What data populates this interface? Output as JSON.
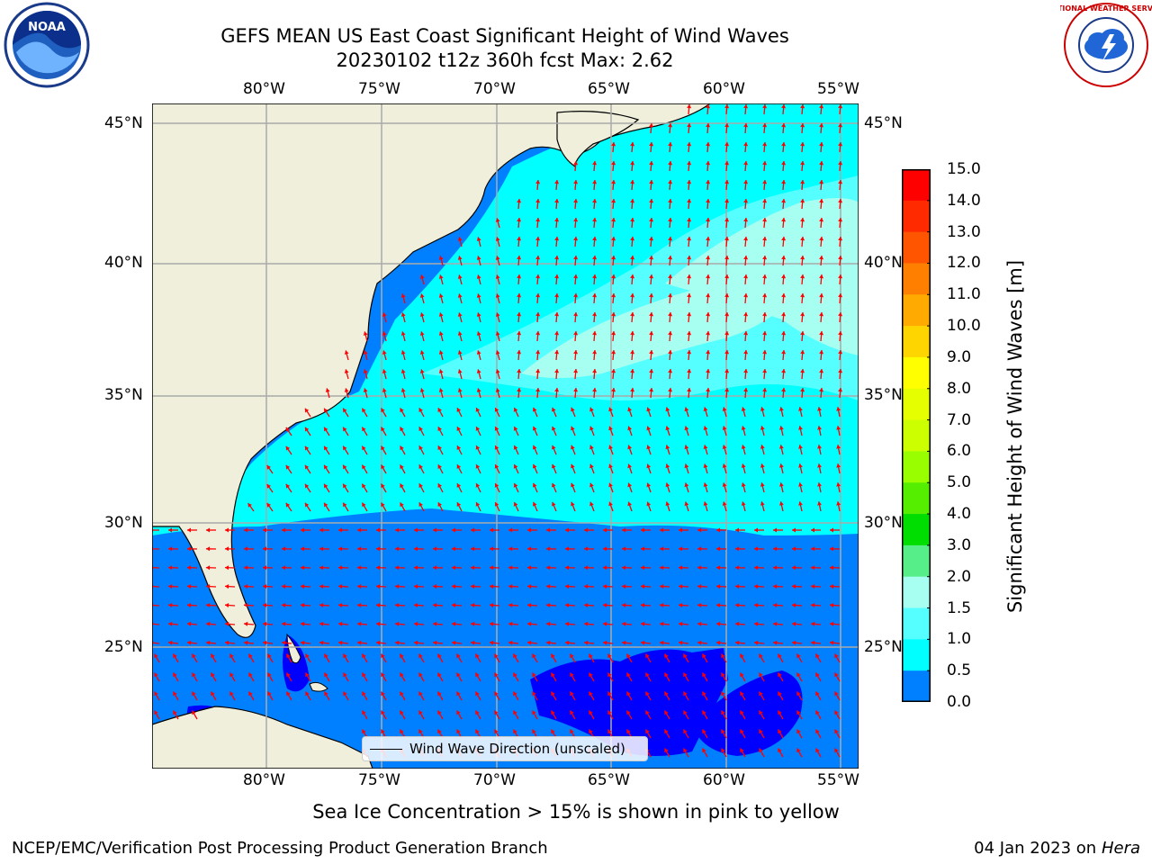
{
  "title": {
    "line1": "GEFS MEAN US East Coast Significant Height of Wind Waves",
    "line2": "20230102 t12z 360h fcst   Max: 2.62"
  },
  "map": {
    "lon_ticks": [
      "80°W",
      "75°W",
      "70°W",
      "65°W",
      "60°W",
      "55°W"
    ],
    "lat_ticks": [
      "45°N",
      "40°N",
      "35°N",
      "30°N",
      "25°N"
    ],
    "legend_label": "Wind Wave Direction (unscaled)",
    "land_color": "#efefdc",
    "arrow_color": "#ff0000"
  },
  "colorbar": {
    "label": "Significant Height of Wind Waves [m]",
    "ticks": [
      "15.0",
      "14.0",
      "13.0",
      "12.0",
      "11.0",
      "10.0",
      "9.0",
      "8.0",
      "7.0",
      "6.0",
      "5.0",
      "4.0",
      "3.0",
      "2.0",
      "1.5",
      "1.0",
      "0.5",
      "0.0"
    ],
    "colors": [
      "#ff0000",
      "#ff2a00",
      "#ff5500",
      "#ff8000",
      "#ffaa00",
      "#ffd500",
      "#ffff00",
      "#e6ff00",
      "#ccff00",
      "#99ff00",
      "#55ee00",
      "#00dd00",
      "#55ee88",
      "#a6fff0",
      "#55ffff",
      "#00ffff",
      "#0080ff",
      "#0000ff"
    ]
  },
  "logos": {
    "noaa": "NOAA",
    "nws": "NATIONAL WEATHER SERVICE"
  },
  "note": "Sea Ice Concentration > 15% is shown in pink to yellow",
  "footer": {
    "left": "NCEP/EMC/Verification Post Processing Product Generation Branch",
    "date": "04 Jan 2023 on ",
    "machine": "Hera"
  }
}
